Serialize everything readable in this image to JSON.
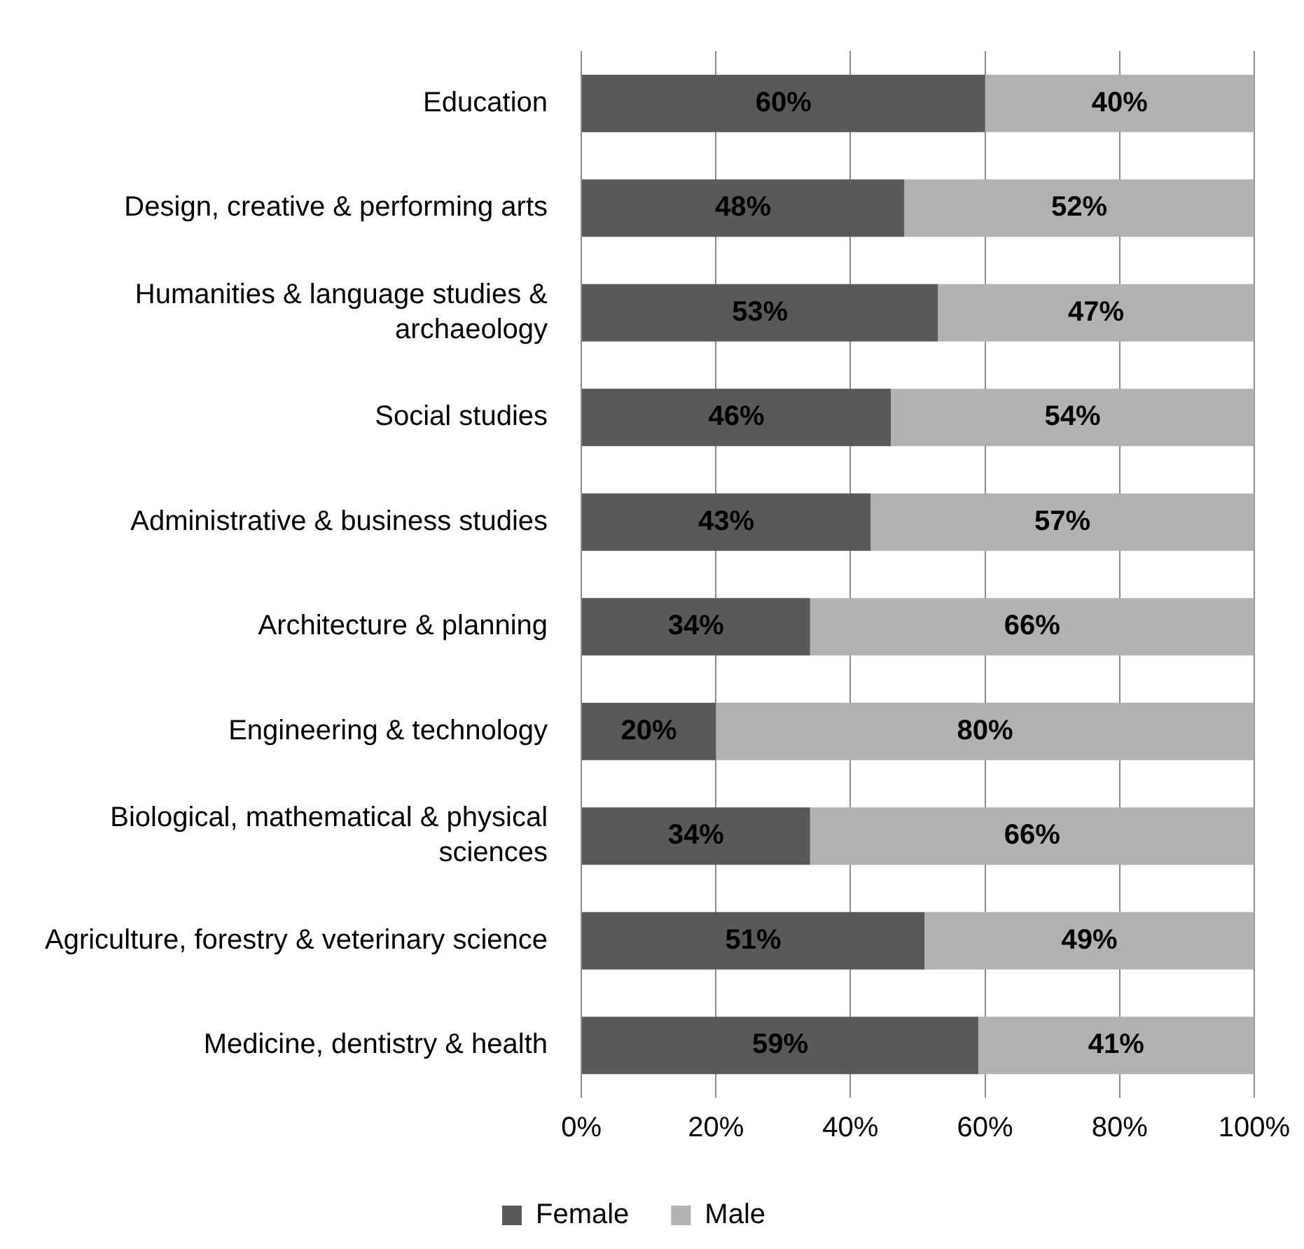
{
  "chart_data": {
    "type": "bar",
    "orientation": "horizontal",
    "stacked": true,
    "categories": [
      "Education",
      "Design, creative & performing arts",
      "Humanities & language studies & archaeology",
      "Social studies",
      "Administrative & business studies",
      "Architecture & planning",
      "Engineering & technology",
      "Biological, mathematical & physical sciences",
      "Agriculture, forestry & veterinary science",
      "Medicine, dentistry & health"
    ],
    "series": [
      {
        "name": "Female",
        "color": "#595959",
        "values": [
          60,
          48,
          53,
          46,
          43,
          34,
          20,
          34,
          51,
          59
        ],
        "value_labels": [
          "60%",
          "48%",
          "53%",
          "46%",
          "43%",
          "34%",
          "20%",
          "34%",
          "51%",
          "59%"
        ]
      },
      {
        "name": "Male",
        "color": "#b2b2b2",
        "values": [
          40,
          52,
          47,
          54,
          57,
          66,
          80,
          66,
          49,
          41
        ],
        "value_labels": [
          "40%",
          "52%",
          "47%",
          "54%",
          "57%",
          "66%",
          "80%",
          "66%",
          "49%",
          "41%"
        ]
      }
    ],
    "xlim": [
      0,
      100
    ],
    "xticks": [
      {
        "value": 0,
        "label": "0%"
      },
      {
        "value": 20,
        "label": "20%"
      },
      {
        "value": 40,
        "label": "40%"
      },
      {
        "value": 60,
        "label": "60%"
      },
      {
        "value": 80,
        "label": "80%"
      },
      {
        "value": 100,
        "label": "100%"
      }
    ],
    "grid": "x",
    "legend": "bottom"
  }
}
